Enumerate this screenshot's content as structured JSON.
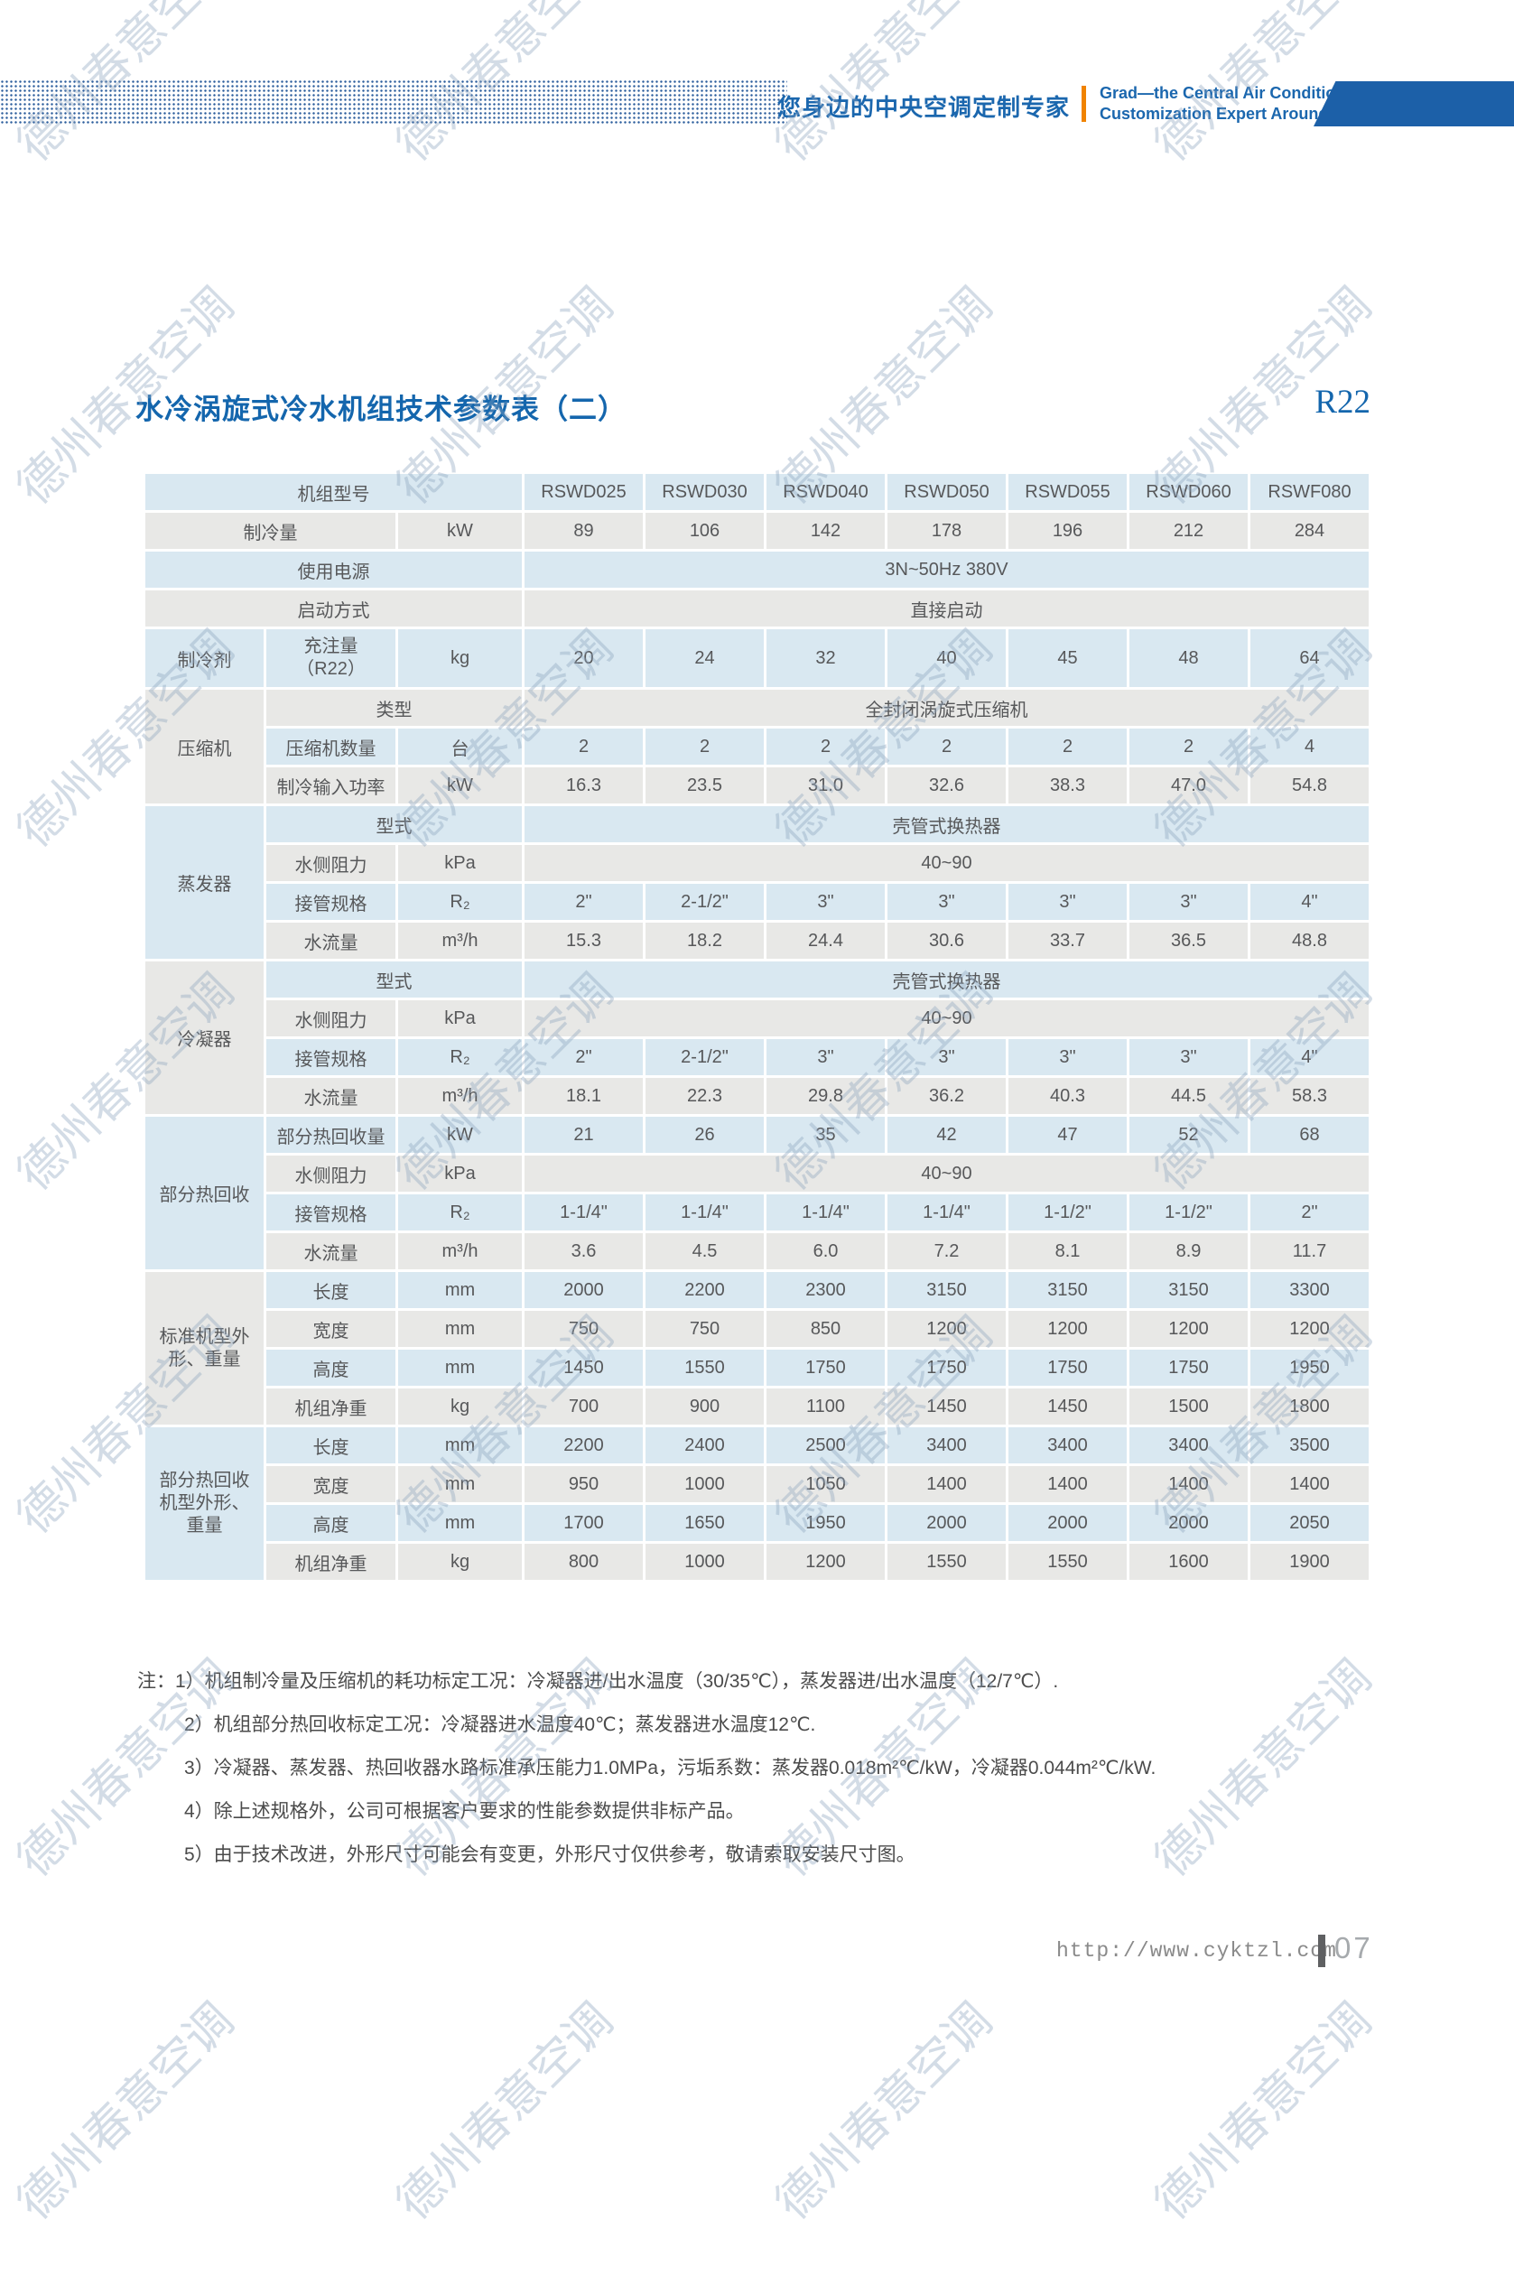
{
  "page": {
    "watermark_text": "德州春意空调"
  },
  "header": {
    "slogan_cn": "您身边的中央空调定制专家",
    "slogan_en_line1": "Grad—the Central Air Conditioning",
    "slogan_en_line2": "Customization Expert Around You",
    "colors": {
      "blue": "#1b67ae",
      "orange": "#f08300",
      "banner": "#1c60a8"
    }
  },
  "title": {
    "text": "水冷涡旋式冷水机组技术参数表（二）",
    "refrigerant_tag": "R22"
  },
  "table": {
    "colors": {
      "blue_cell": "#d9e8f1",
      "gray_cell": "#e8e8e6",
      "text": "#57585a"
    },
    "models_row": {
      "label": "机组型号",
      "models": [
        "RSWD025",
        "RSWD030",
        "RSWD040",
        "RSWD050",
        "RSWD055",
        "RSWD060",
        "RSWF080"
      ]
    },
    "cooling_capacity": {
      "label": "制冷量",
      "unit": "kW",
      "values": [
        "89",
        "106",
        "142",
        "178",
        "196",
        "212",
        "284"
      ]
    },
    "power_supply": {
      "label": "使用电源",
      "value": "3N~50Hz  380V"
    },
    "start_mode": {
      "label": "启动方式",
      "value": "直接启动"
    },
    "refrigerant": {
      "group": "制冷剂",
      "label": "充注量\n（R22）",
      "unit": "kg",
      "values": [
        "20",
        "24",
        "32",
        "40",
        "45",
        "48",
        "64"
      ]
    },
    "compressor": {
      "group": "压缩机",
      "type_label": "类型",
      "type_value": "全封闭涡旋式压缩机",
      "qty": {
        "label": "压缩机数量",
        "unit": "台",
        "values": [
          "2",
          "2",
          "2",
          "2",
          "2",
          "2",
          "4"
        ]
      },
      "input_power": {
        "label": "制冷输入功率",
        "unit": "kW",
        "values": [
          "16.3",
          "23.5",
          "31.0",
          "32.6",
          "38.3",
          "47.0",
          "54.8"
        ]
      }
    },
    "evaporator": {
      "group": "蒸发器",
      "type_label": "型式",
      "type_value": "壳管式换热器",
      "resistance": {
        "label": "水侧阻力",
        "unit": "kPa",
        "value": "40~90"
      },
      "pipe": {
        "label": "接管规格",
        "unit": "R₂",
        "values": [
          "2\"",
          "2-1/2\"",
          "3\"",
          "3\"",
          "3\"",
          "3\"",
          "4\""
        ]
      },
      "flow": {
        "label": "水流量",
        "unit": "m³/h",
        "values": [
          "15.3",
          "18.2",
          "24.4",
          "30.6",
          "33.7",
          "36.5",
          "48.8"
        ]
      }
    },
    "condenser": {
      "group": "冷凝器",
      "type_label": "型式",
      "type_value": "壳管式换热器",
      "resistance": {
        "label": "水侧阻力",
        "unit": "kPa",
        "value": "40~90"
      },
      "pipe": {
        "label": "接管规格",
        "unit": "R₂",
        "values": [
          "2\"",
          "2-1/2\"",
          "3\"",
          "3\"",
          "3\"",
          "3\"",
          "4\""
        ]
      },
      "flow": {
        "label": "水流量",
        "unit": "m³/h",
        "values": [
          "18.1",
          "22.3",
          "29.8",
          "36.2",
          "40.3",
          "44.5",
          "58.3"
        ]
      }
    },
    "heat_recovery": {
      "group": "部分热回收",
      "amount": {
        "label": "部分热回收量",
        "unit": "kW",
        "values": [
          "21",
          "26",
          "35",
          "42",
          "47",
          "52",
          "68"
        ]
      },
      "resistance": {
        "label": "水侧阻力",
        "unit": "kPa",
        "value": "40~90"
      },
      "pipe": {
        "label": "接管规格",
        "unit": "R₂",
        "values": [
          "1-1/4\"",
          "1-1/4\"",
          "1-1/4\"",
          "1-1/4\"",
          "1-1/2\"",
          "1-1/2\"",
          "2\""
        ]
      },
      "flow": {
        "label": "水流量",
        "unit": "m³/h",
        "values": [
          "3.6",
          "4.5",
          "6.0",
          "7.2",
          "8.1",
          "8.9",
          "11.7"
        ]
      }
    },
    "standard_unit": {
      "group": "标准机型外\n形、重量",
      "length": {
        "label": "长度",
        "unit": "mm",
        "values": [
          "2000",
          "2200",
          "2300",
          "3150",
          "3150",
          "3150",
          "3300"
        ]
      },
      "width": {
        "label": "宽度",
        "unit": "mm",
        "values": [
          "750",
          "750",
          "850",
          "1200",
          "1200",
          "1200",
          "1200"
        ]
      },
      "height": {
        "label": "高度",
        "unit": "mm",
        "values": [
          "1450",
          "1550",
          "1750",
          "1750",
          "1750",
          "1750",
          "1950"
        ]
      },
      "weight": {
        "label": "机组净重",
        "unit": "kg",
        "values": [
          "700",
          "900",
          "1100",
          "1450",
          "1450",
          "1500",
          "1800"
        ]
      }
    },
    "heat_recovery_unit": {
      "group": "部分热回收\n机型外形、\n重量",
      "length": {
        "label": "长度",
        "unit": "mm",
        "values": [
          "2200",
          "2400",
          "2500",
          "3400",
          "3400",
          "3400",
          "3500"
        ]
      },
      "width": {
        "label": "宽度",
        "unit": "mm",
        "values": [
          "950",
          "1000",
          "1050",
          "1400",
          "1400",
          "1400",
          "1400"
        ]
      },
      "height": {
        "label": "高度",
        "unit": "mm",
        "values": [
          "1700",
          "1650",
          "1950",
          "2000",
          "2000",
          "2000",
          "2050"
        ]
      },
      "weight": {
        "label": "机组净重",
        "unit": "kg",
        "values": [
          "800",
          "1000",
          "1200",
          "1550",
          "1550",
          "1600",
          "1900"
        ]
      }
    }
  },
  "notes": {
    "prefix": "注：",
    "items": [
      "1）机组制冷量及压缩机的耗功标定工况：冷凝器进/出水温度（30/35℃），蒸发器进/出水温度（12/7℃）.",
      "2）机组部分热回收标定工况：冷凝器进水温度40℃；蒸发器进水温度12℃.",
      "3）冷凝器、蒸发器、热回收器水路标准承压能力1.0MPa，污垢系数：蒸发器0.018m²℃/kW，冷凝器0.044m²℃/kW.",
      "4）除上述规格外，公司可根据客户要求的性能参数提供非标产品。",
      "5）由于技术改进，外形尺寸可能会有变更，外形尺寸仅供参考，敬请索取安装尺寸图。"
    ]
  },
  "footer": {
    "url": "http://www.cyktzl.com",
    "page_number": "07"
  }
}
